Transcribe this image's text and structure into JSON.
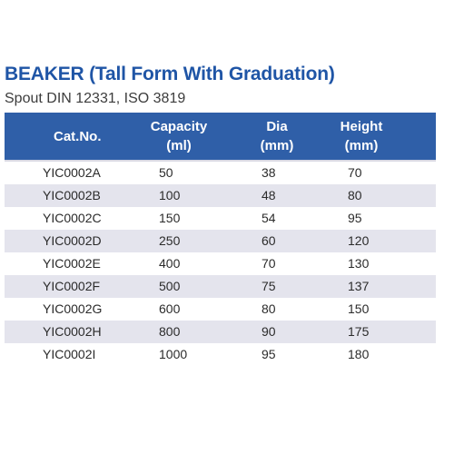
{
  "heading": {
    "title": "BEAKER (Tall Form With Graduation)",
    "subtitle": "Spout DIN 12331, ISO 3819"
  },
  "colors": {
    "title": "#1f55a6",
    "header_bg": "#2f5fa8",
    "stripe": "#e4e4ed"
  },
  "table": {
    "headers": {
      "cat": "Cat.No.",
      "capacity_line1": "Capacity",
      "capacity_line2": "(ml)",
      "dia_line1": "Dia",
      "dia_line2": "(mm)",
      "height_line1": "Height",
      "height_line2": "(mm)"
    },
    "rows": [
      {
        "cat": "YIC0002A",
        "capacity": "50",
        "dia": "38",
        "height": "70"
      },
      {
        "cat": "YIC0002B",
        "capacity": "100",
        "dia": "48",
        "height": "80"
      },
      {
        "cat": "YIC0002C",
        "capacity": "150",
        "dia": "54",
        "height": "95"
      },
      {
        "cat": "YIC0002D",
        "capacity": "250",
        "dia": "60",
        "height": "120"
      },
      {
        "cat": "YIC0002E",
        "capacity": "400",
        "dia": "70",
        "height": "130"
      },
      {
        "cat": "YIC0002F",
        "capacity": "500",
        "dia": "75",
        "height": "137"
      },
      {
        "cat": "YIC0002G",
        "capacity": "600",
        "dia": "80",
        "height": "150"
      },
      {
        "cat": "YIC0002H",
        "capacity": "800",
        "dia": "90",
        "height": "175"
      },
      {
        "cat": "YIC0002I",
        "capacity": "1000",
        "dia": "95",
        "height": "180"
      }
    ]
  }
}
